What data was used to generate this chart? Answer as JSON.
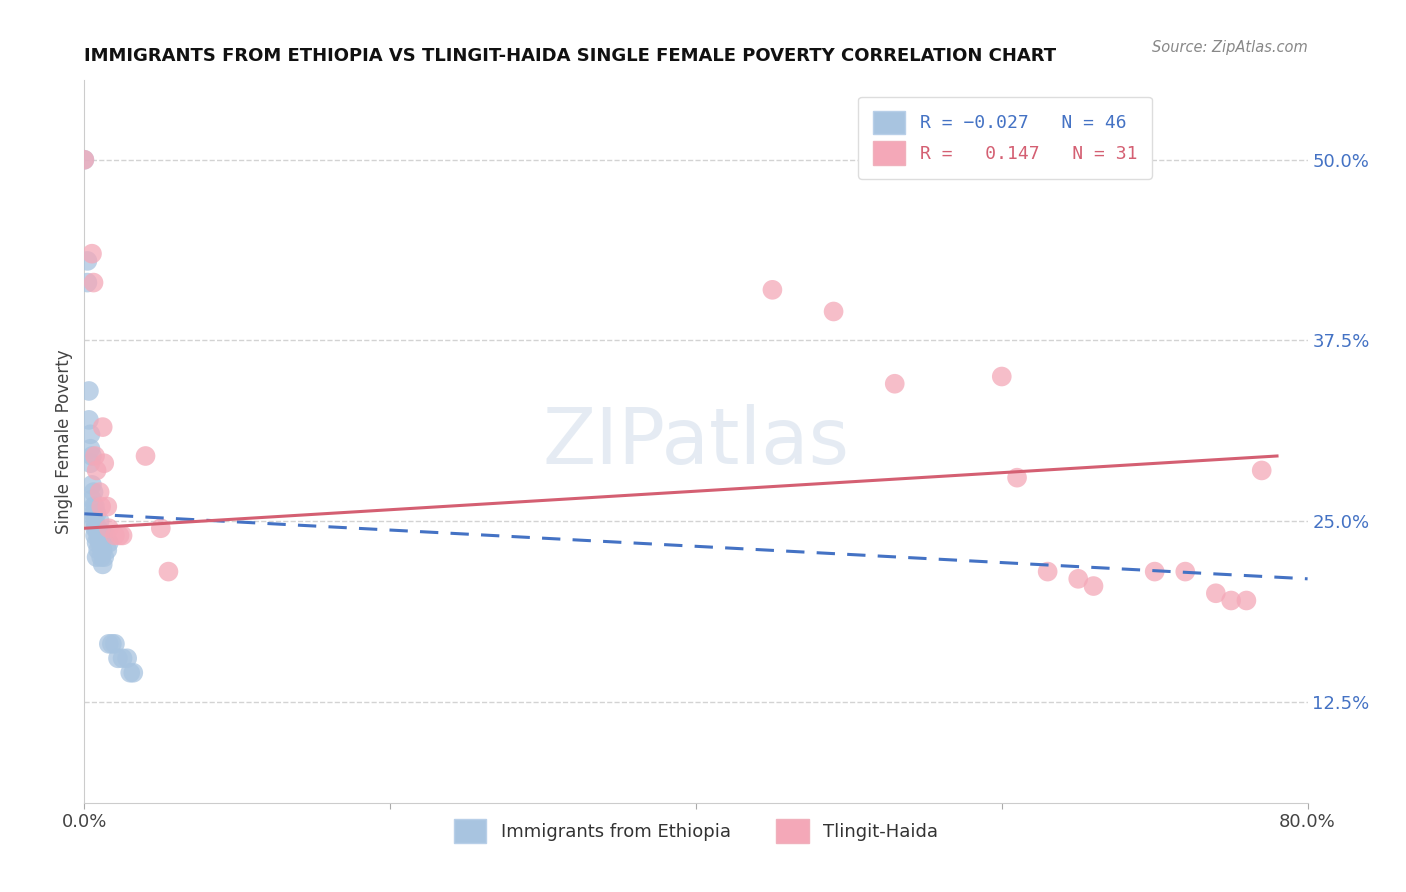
{
  "title": "IMMIGRANTS FROM ETHIOPIA VS TLINGIT-HAIDA SINGLE FEMALE POVERTY CORRELATION CHART",
  "source": "Source: ZipAtlas.com",
  "ylabel": "Single Female Poverty",
  "watermark": "ZIPatlas",
  "xlim": [
    0.0,
    0.8
  ],
  "ylim": [
    0.055,
    0.555
  ],
  "xticks": [
    0.0,
    0.2,
    0.4,
    0.6,
    0.8
  ],
  "xticklabels": [
    "0.0%",
    "",
    "",
    "",
    "80.0%"
  ],
  "yticks_right": [
    0.125,
    0.25,
    0.375,
    0.5
  ],
  "ytick_labels_right": [
    "12.5%",
    "25.0%",
    "37.5%",
    "50.0%"
  ],
  "blue_color": "#a8c4e0",
  "pink_color": "#f4a8b8",
  "blue_line_color": "#4472C4",
  "pink_line_color": "#d45f72",
  "blue_scatter": [
    [
      0.0,
      0.5
    ],
    [
      0.002,
      0.43
    ],
    [
      0.002,
      0.415
    ],
    [
      0.003,
      0.34
    ],
    [
      0.003,
      0.32
    ],
    [
      0.004,
      0.31
    ],
    [
      0.004,
      0.3
    ],
    [
      0.004,
      0.29
    ],
    [
      0.005,
      0.295
    ],
    [
      0.005,
      0.275
    ],
    [
      0.005,
      0.265
    ],
    [
      0.006,
      0.27
    ],
    [
      0.006,
      0.26
    ],
    [
      0.006,
      0.255
    ],
    [
      0.006,
      0.25
    ],
    [
      0.007,
      0.26
    ],
    [
      0.007,
      0.25
    ],
    [
      0.007,
      0.245
    ],
    [
      0.007,
      0.24
    ],
    [
      0.008,
      0.255
    ],
    [
      0.008,
      0.245
    ],
    [
      0.008,
      0.235
    ],
    [
      0.008,
      0.225
    ],
    [
      0.009,
      0.245
    ],
    [
      0.009,
      0.24
    ],
    [
      0.009,
      0.23
    ],
    [
      0.01,
      0.25
    ],
    [
      0.01,
      0.24
    ],
    [
      0.01,
      0.235
    ],
    [
      0.011,
      0.235
    ],
    [
      0.011,
      0.225
    ],
    [
      0.012,
      0.23
    ],
    [
      0.012,
      0.22
    ],
    [
      0.013,
      0.24
    ],
    [
      0.013,
      0.225
    ],
    [
      0.014,
      0.24
    ],
    [
      0.015,
      0.23
    ],
    [
      0.016,
      0.235
    ],
    [
      0.016,
      0.165
    ],
    [
      0.018,
      0.165
    ],
    [
      0.02,
      0.165
    ],
    [
      0.022,
      0.155
    ],
    [
      0.025,
      0.155
    ],
    [
      0.028,
      0.155
    ],
    [
      0.03,
      0.145
    ],
    [
      0.032,
      0.145
    ]
  ],
  "pink_scatter": [
    [
      0.0,
      0.5
    ],
    [
      0.005,
      0.435
    ],
    [
      0.006,
      0.415
    ],
    [
      0.007,
      0.295
    ],
    [
      0.008,
      0.285
    ],
    [
      0.01,
      0.27
    ],
    [
      0.011,
      0.26
    ],
    [
      0.012,
      0.315
    ],
    [
      0.013,
      0.29
    ],
    [
      0.015,
      0.26
    ],
    [
      0.016,
      0.245
    ],
    [
      0.02,
      0.24
    ],
    [
      0.023,
      0.24
    ],
    [
      0.025,
      0.24
    ],
    [
      0.04,
      0.295
    ],
    [
      0.05,
      0.245
    ],
    [
      0.055,
      0.215
    ],
    [
      0.45,
      0.41
    ],
    [
      0.49,
      0.395
    ],
    [
      0.53,
      0.345
    ],
    [
      0.6,
      0.35
    ],
    [
      0.61,
      0.28
    ],
    [
      0.63,
      0.215
    ],
    [
      0.65,
      0.21
    ],
    [
      0.66,
      0.205
    ],
    [
      0.7,
      0.215
    ],
    [
      0.72,
      0.215
    ],
    [
      0.74,
      0.2
    ],
    [
      0.75,
      0.195
    ],
    [
      0.76,
      0.195
    ],
    [
      0.77,
      0.285
    ]
  ],
  "background_color": "#ffffff",
  "grid_color": "#c8c8c8"
}
